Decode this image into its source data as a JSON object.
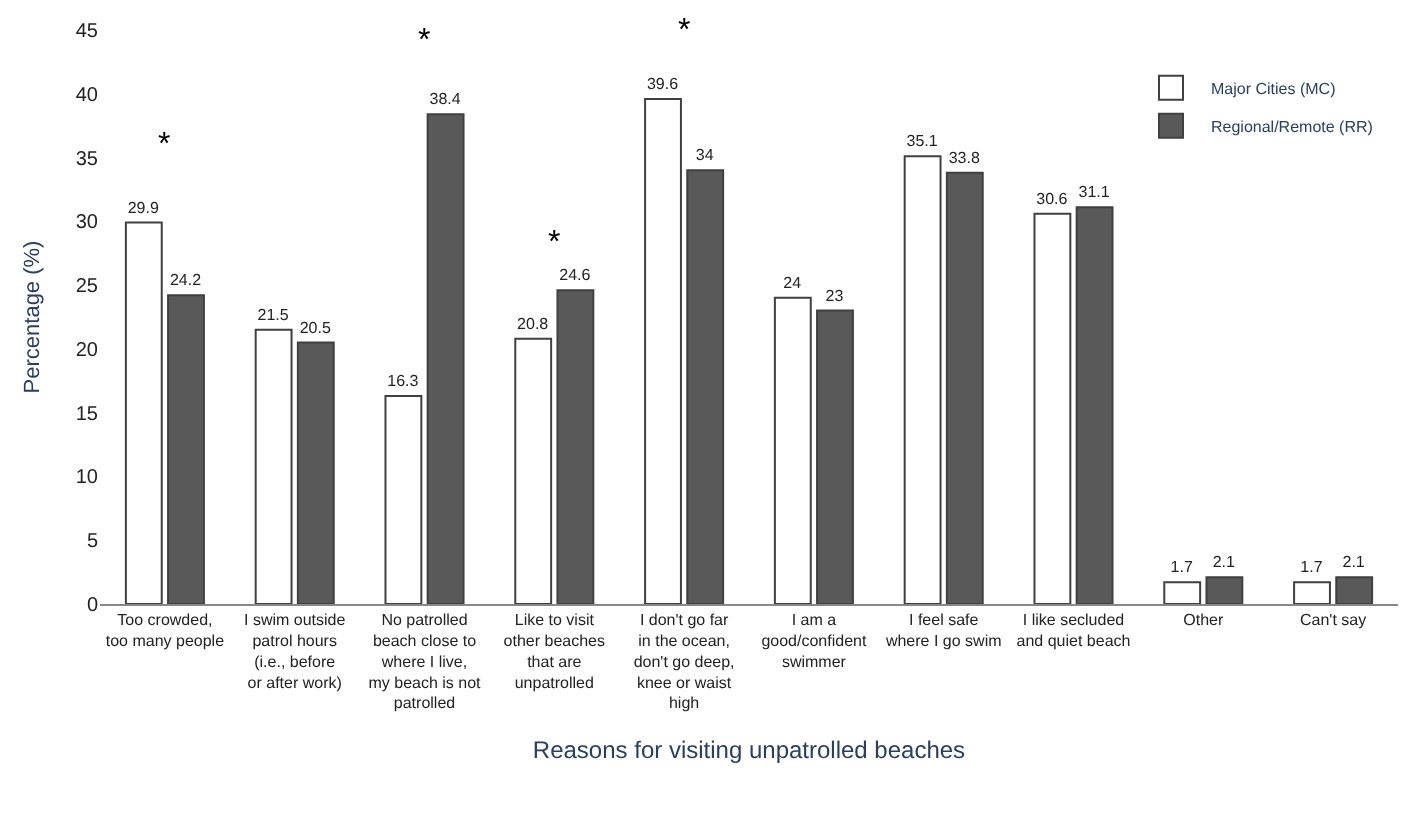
{
  "chart_data": {
    "type": "bar",
    "xlabel": "Reasons for visiting unpatrolled beaches",
    "ylabel": "Percentage (%)",
    "categories": [
      "Too crowded, too many people",
      "I swim outside patrol hours (i.e., before or after work)",
      "No patrolled beach close to where I live, my beach is not patrolled",
      "Like to visit other beaches that are unpatrolled",
      "I don't go far in the ocean, don't go deep, knee or waist high",
      "I am a good/confident swimmer",
      "I feel safe where I go swim",
      "I like secluded and quiet beach",
      "Other",
      "Can't say"
    ],
    "series": [
      {
        "name": "Major Cities (MC)",
        "color": "#ffffff",
        "values": [
          29.9,
          21.5,
          16.3,
          20.8,
          39.6,
          24,
          35.1,
          30.6,
          1.7,
          1.7
        ]
      },
      {
        "name": "Regional/Remote (RR)",
        "color": "#595959",
        "values": [
          24.2,
          20.5,
          38.4,
          24.6,
          34,
          23,
          33.8,
          31.1,
          2.1,
          2.1
        ]
      }
    ],
    "ylim": [
      0,
      45
    ],
    "yticks": [
      0,
      5,
      10,
      15,
      20,
      25,
      30,
      35,
      40,
      45
    ],
    "data_labels": true,
    "legend": "top right",
    "annotations": [
      "*",
      "*",
      "*",
      "*"
    ]
  }
}
